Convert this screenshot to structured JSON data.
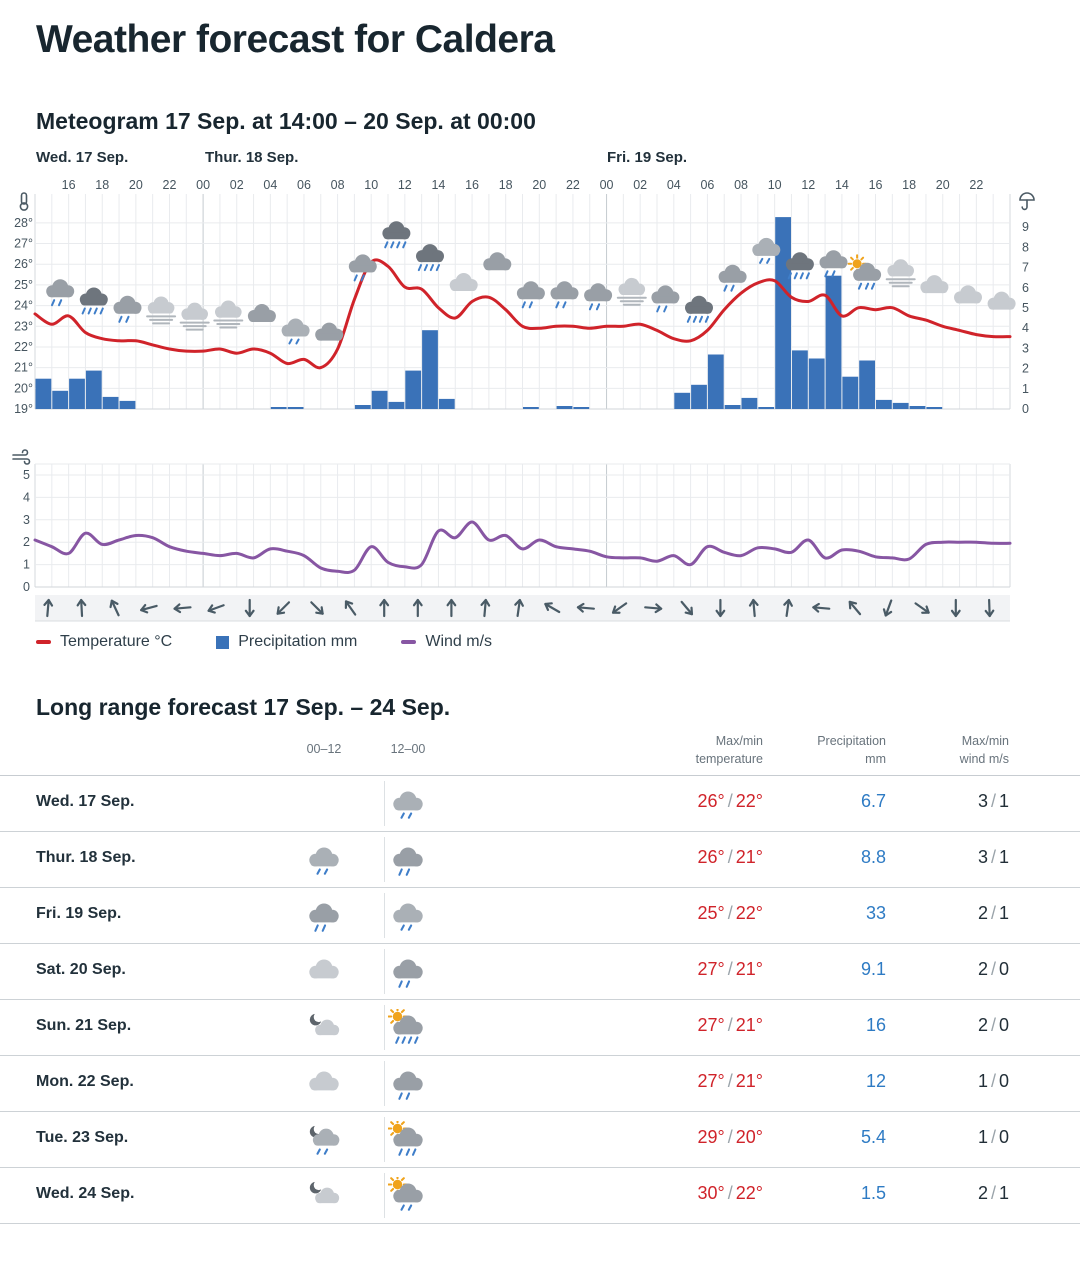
{
  "title": "Weather forecast for Caldera",
  "meteogram": {
    "title": "Meteogram 17 Sep. at 14:00 – 20 Sep. at 00:00",
    "legend": [
      {
        "label": "Temperature °C",
        "marker": "dash",
        "color": "#d0232a"
      },
      {
        "label": "Precipitation mm",
        "marker": "square",
        "color": "#3a72b8"
      },
      {
        "label": "Wind m/s",
        "marker": "dash",
        "color": "#8756a3"
      }
    ]
  },
  "chart_data": {
    "type": "meteogram",
    "title": "Meteogram 17 Sep. at 14:00 – 20 Sep. at 00:00",
    "start": "17 Sep. 14:00",
    "end": "20 Sep. 00:00",
    "hours_total": 58,
    "days": [
      {
        "label": "Wed. 17 Sep.",
        "start_hour_index": 0
      },
      {
        "label": "Thur. 18 Sep.",
        "start_hour_index": 10
      },
      {
        "label": "Fri. 19 Sep.",
        "start_hour_index": 34
      }
    ],
    "hour_tick_labels": [
      "16",
      "18",
      "20",
      "22",
      "00",
      "02",
      "04",
      "06",
      "08",
      "10",
      "12",
      "14",
      "16",
      "18",
      "20",
      "22",
      "00",
      "02",
      "04",
      "06",
      "08",
      "10",
      "12",
      "14",
      "16",
      "18",
      "20",
      "22"
    ],
    "hour_tick_start_index": 2,
    "hour_tick_step": 2,
    "temp_axis": {
      "unit": "°C",
      "min": 19,
      "max": 28,
      "tick_step": 1,
      "icon": "thermometer-icon"
    },
    "precip_axis": {
      "unit": "mm",
      "min": 0,
      "max": 9,
      "tick_step": 1,
      "icon": "umbrella-icon"
    },
    "wind_axis": {
      "unit": "m/s",
      "min": 0,
      "max": 5,
      "tick_step": 1,
      "icon": "wind-icon"
    },
    "series": {
      "temperature_c": [
        23.6,
        23.1,
        23.5,
        22.7,
        22.4,
        22.3,
        22.3,
        22.1,
        21.9,
        21.8,
        21.8,
        21.9,
        21.7,
        21.9,
        21.7,
        21.2,
        21.4,
        21.0,
        21.9,
        24.3,
        26.1,
        25.9,
        24.9,
        24.8,
        23.9,
        23.4,
        24.2,
        24.4,
        23.8,
        23.0,
        22.9,
        23.0,
        23.0,
        22.9,
        23.0,
        23.0,
        23.1,
        22.8,
        22.4,
        22.3,
        22.8,
        23.8,
        24.6,
        25.1,
        25.2,
        24.4,
        24.2,
        24.5,
        23.5,
        23.9,
        23.8,
        23.9,
        23.5,
        23.3,
        23.0,
        22.8,
        22.6,
        22.5
      ],
      "precipitation_mm": [
        1.5,
        0.9,
        1.5,
        1.9,
        0.6,
        0.4,
        0,
        0,
        0,
        0,
        0,
        0,
        0,
        0,
        0.1,
        0.1,
        0,
        0,
        0,
        0.2,
        0.9,
        0.35,
        1.9,
        3.9,
        0.5,
        0,
        0,
        0,
        0,
        0.1,
        0,
        0.15,
        0.1,
        0,
        0,
        0,
        0,
        0,
        0.8,
        1.2,
        2.7,
        0.2,
        0.55,
        0.1,
        9.5,
        2.9,
        2.5,
        6.6,
        1.6,
        2.4,
        0.45,
        0.3,
        0.15,
        0.1,
        0,
        0,
        0,
        0
      ],
      "wind_ms": [
        2.1,
        1.8,
        1.5,
        2.4,
        1.9,
        2.1,
        2.3,
        2.2,
        1.8,
        1.6,
        1.5,
        1.4,
        1.5,
        1.3,
        1.7,
        1.6,
        1.4,
        0.85,
        0.7,
        0.75,
        1.8,
        1.1,
        0.9,
        1.0,
        2.5,
        2.2,
        2.9,
        2.1,
        2.3,
        1.7,
        2.1,
        1.8,
        1.7,
        1.6,
        1.35,
        1.3,
        1.3,
        1.15,
        1.4,
        1.0,
        1.8,
        1.55,
        1.4,
        1.75,
        1.7,
        1.55,
        2.1,
        1.3,
        1.65,
        1.6,
        1.35,
        1.3,
        1.25,
        1.9,
        2.0,
        2.0,
        2.0,
        1.95
      ]
    },
    "weather_icons_every_2h_from_hour_index_1": [
      "rain",
      "heavy-rain",
      "rain",
      "fog",
      "fog",
      "fog",
      "cloudy",
      "light-rain",
      "cloudy",
      "rain",
      "heavy-rain",
      "heavy-rain",
      "cloudy-light",
      "cloudy",
      "rain",
      "rain",
      "rain",
      "fog",
      "rain",
      "heavy-rain",
      "rain",
      "light-rain",
      "heavy-rain",
      "rain",
      "sun-rain",
      "fog",
      "cloudy-light",
      "cloudy-light",
      "cloudy-light"
    ],
    "wind_arrow_directions_deg_cw_from_up": [
      5,
      -3,
      -25,
      -105,
      -95,
      -110,
      180,
      -135,
      135,
      -35,
      0,
      0,
      0,
      5,
      8,
      -60,
      -85,
      -125,
      95,
      140,
      180,
      -5,
      8,
      -85,
      -40,
      -160,
      125,
      180,
      178
    ]
  },
  "longrange": {
    "title": "Long range forecast 17 Sep. – 24 Sep.",
    "columns": {
      "period1": "00–12",
      "period2": "12–00",
      "temp": "Max/min\ntemperature",
      "precip": "Precipitation\nmm",
      "wind": "Max/min\nwind m/s"
    },
    "rows": [
      {
        "day": "Wed. 17 Sep.",
        "icon1": "",
        "icon2": "light-rain",
        "temp_max": "26°",
        "temp_min": "22°",
        "precip": "6.7",
        "wind_max": "3",
        "wind_min": "1"
      },
      {
        "day": "Thur. 18 Sep.",
        "icon1": "light-rain",
        "icon2": "rain",
        "temp_max": "26°",
        "temp_min": "21°",
        "precip": "8.8",
        "wind_max": "3",
        "wind_min": "1"
      },
      {
        "day": "Fri. 19 Sep.",
        "icon1": "rain",
        "icon2": "light-rain",
        "temp_max": "25°",
        "temp_min": "22°",
        "precip": "33",
        "wind_max": "2",
        "wind_min": "1"
      },
      {
        "day": "Sat. 20 Sep.",
        "icon1": "cloudy-light",
        "icon2": "rain",
        "temp_max": "27°",
        "temp_min": "21°",
        "precip": "9.1",
        "wind_max": "2",
        "wind_min": "0"
      },
      {
        "day": "Sun. 21 Sep.",
        "icon1": "fair-night",
        "icon2": "sun-heavy-rain",
        "temp_max": "27°",
        "temp_min": "21°",
        "precip": "16",
        "wind_max": "2",
        "wind_min": "0"
      },
      {
        "day": "Mon. 22 Sep.",
        "icon1": "cloudy-light",
        "icon2": "rain",
        "temp_max": "27°",
        "temp_min": "21°",
        "precip": "12",
        "wind_max": "1",
        "wind_min": "0"
      },
      {
        "day": "Tue. 23 Sep.",
        "icon1": "night-rain",
        "icon2": "sun-rain",
        "temp_max": "29°",
        "temp_min": "20°",
        "precip": "5.4",
        "wind_max": "1",
        "wind_min": "0"
      },
      {
        "day": "Wed. 24 Sep.",
        "icon1": "fair-night",
        "icon2": "sun-light-rain",
        "temp_max": "30°",
        "temp_min": "22°",
        "precip": "1.5",
        "wind_max": "2",
        "wind_min": "1"
      }
    ]
  }
}
